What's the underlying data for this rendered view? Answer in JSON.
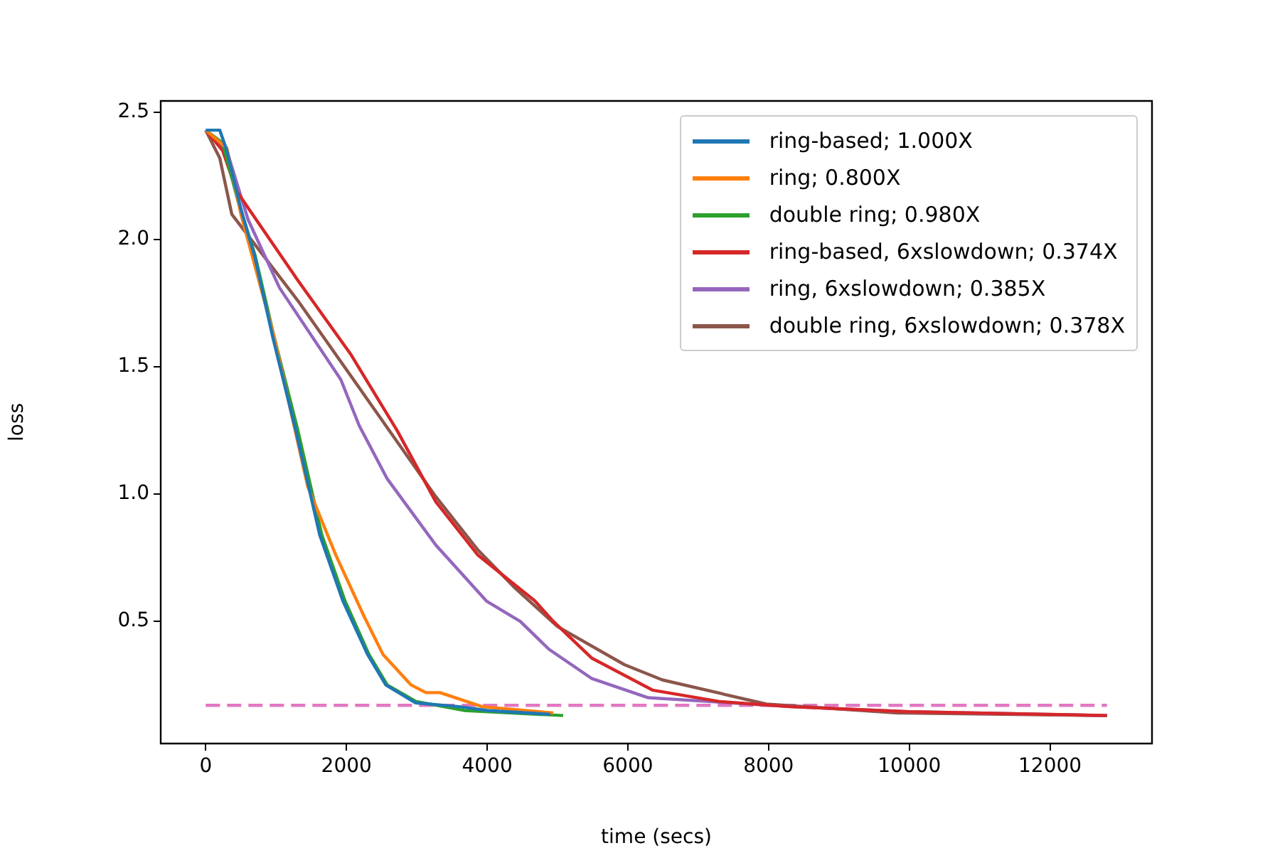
{
  "chart_data": {
    "type": "line",
    "xlabel": "time (secs)",
    "ylabel": "loss",
    "xlim": [
      -640,
      13450
    ],
    "ylim": [
      0.02,
      2.545
    ],
    "xticks": [
      0,
      2000,
      4000,
      6000,
      8000,
      10000,
      12000
    ],
    "yticks": [
      {
        "value": 0.5,
        "label": "0.5"
      },
      {
        "value": 1,
        "label": "1.0"
      },
      {
        "value": 1.5,
        "label": "1.5"
      },
      {
        "value": 2,
        "label": "2.0"
      },
      {
        "value": 2.5,
        "label": "2.5"
      }
    ],
    "legend": "top right",
    "marker": "none",
    "grid": false,
    "series": [
      {
        "name": "ring-based; 1.000X",
        "color": "#1f77b4",
        "x": [
          0,
          200,
          300,
          500,
          700,
          950,
          1280,
          1620,
          1950,
          2300,
          2560,
          2980,
          3600,
          4000,
          4900
        ],
        "values": [
          2.43,
          2.43,
          2.35,
          2.12,
          1.93,
          1.62,
          1.25,
          0.84,
          0.58,
          0.37,
          0.25,
          0.18,
          0.165,
          0.15,
          0.135
        ]
      },
      {
        "name": "ring; 0.800X",
        "color": "#ff7f0e",
        "x": [
          0,
          300,
          500,
          970,
          1450,
          1850,
          2250,
          2520,
          2920,
          3130,
          3330,
          3930,
          4940
        ],
        "values": [
          2.43,
          2.36,
          2.1,
          1.62,
          1.03,
          0.76,
          0.52,
          0.37,
          0.25,
          0.22,
          0.22,
          0.165,
          0.14
        ]
      },
      {
        "name": "double ring; 0.980X",
        "color": "#2ca02c",
        "x": [
          0,
          240,
          460,
          700,
          970,
          1310,
          1650,
          1980,
          2320,
          2580,
          2990,
          3670,
          5080
        ],
        "values": [
          2.43,
          2.38,
          2.15,
          1.94,
          1.62,
          1.25,
          0.84,
          0.58,
          0.37,
          0.25,
          0.185,
          0.15,
          0.13
        ]
      },
      {
        "name": "ring-based, 6xslowdown; 0.374X",
        "color": "#d62728",
        "x": [
          0,
          240,
          440,
          1310,
          2060,
          2720,
          3270,
          3870,
          4680,
          4940,
          5490,
          6350,
          7300,
          8310,
          10000,
          12810
        ],
        "values": [
          2.43,
          2.35,
          2.19,
          1.84,
          1.55,
          1.25,
          0.97,
          0.76,
          0.58,
          0.5,
          0.355,
          0.23,
          0.185,
          0.165,
          0.145,
          0.13
        ]
      },
      {
        "name": "ring, 6xslowdown; 0.385X",
        "color": "#9467bd",
        "x": [
          0,
          300,
          600,
          1050,
          1920,
          2180,
          2580,
          3270,
          3990,
          4470,
          4880,
          5490,
          6290,
          7160,
          8310,
          10000,
          12810
        ],
        "values": [
          2.43,
          2.35,
          2.08,
          1.81,
          1.45,
          1.27,
          1.06,
          0.8,
          0.58,
          0.5,
          0.39,
          0.275,
          0.2,
          0.185,
          0.165,
          0.145,
          0.13
        ]
      },
      {
        "name": "double ring, 6xslowdown; 0.378X",
        "color": "#8c564b",
        "x": [
          0,
          200,
          370,
          1310,
          2380,
          3270,
          3870,
          4400,
          5000,
          5950,
          6490,
          7970,
          9840,
          12810
        ],
        "values": [
          2.43,
          2.32,
          2.1,
          1.76,
          1.34,
          0.99,
          0.78,
          0.63,
          0.48,
          0.33,
          0.27,
          0.175,
          0.14,
          0.13
        ]
      },
      {
        "color": "#e377c2",
        "line_style": "dashed",
        "x": [
          0,
          12810
        ],
        "values": [
          0.17,
          0.17
        ]
      }
    ]
  }
}
